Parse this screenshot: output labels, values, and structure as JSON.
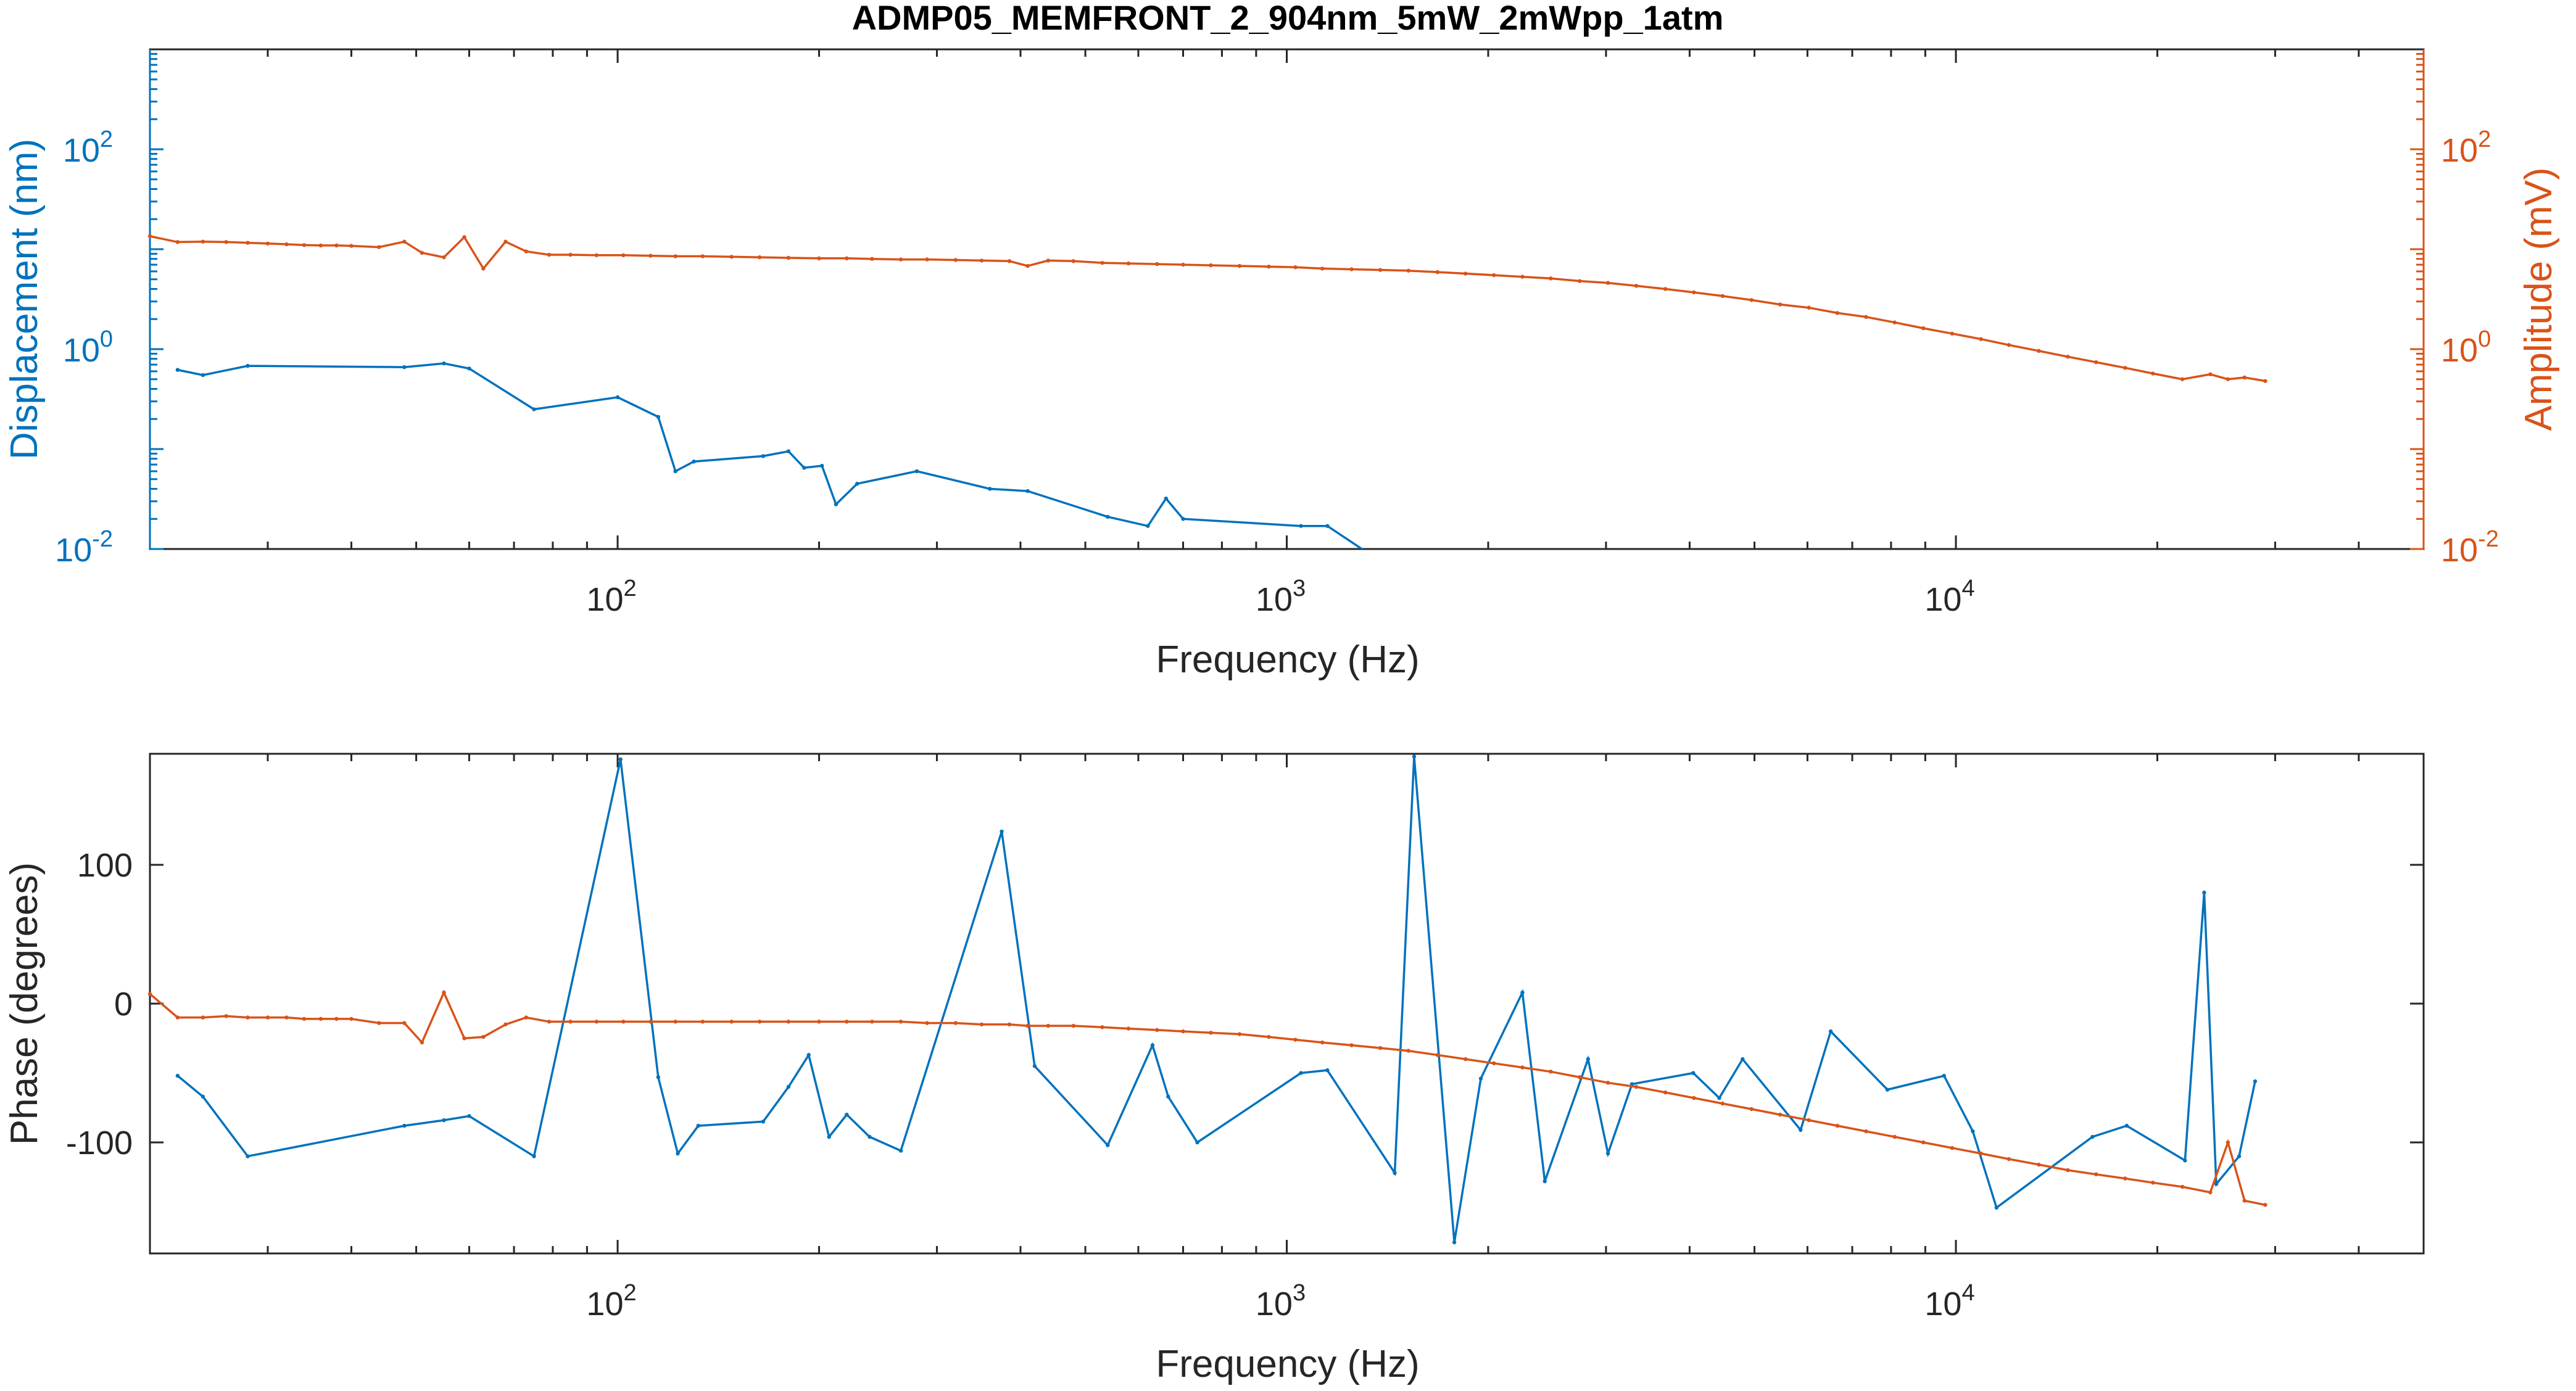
{
  "title": "ADMP05_MEMFRONT_2_904nm_5mW_2mWpp_1atm",
  "colors": {
    "blue": "#0072BD",
    "orange": "#D95319",
    "axis": "#262626"
  },
  "chart_data": [
    {
      "type": "line",
      "xlabel": "Frequency (Hz)",
      "ylabel_left": "Displacement (nm)",
      "ylabel_right": "Amplitude (mV)",
      "xscale": "log",
      "yscale": "log",
      "xlim": [
        20,
        50000
      ],
      "ylim_left": [
        0.01,
        1000
      ],
      "ylim_right": [
        0.01,
        1000
      ],
      "x_ticks": [
        {
          "value": 100,
          "base": "10",
          "exp": "2"
        },
        {
          "value": 1000,
          "base": "10",
          "exp": "3"
        },
        {
          "value": 10000,
          "base": "10",
          "exp": "4"
        }
      ],
      "y_ticks_left": [
        {
          "value": 0.01,
          "base": "10",
          "exp": "-2"
        },
        {
          "value": 1,
          "base": "10",
          "exp": "0"
        },
        {
          "value": 100,
          "base": "10",
          "exp": "2"
        }
      ],
      "y_ticks_right": [
        {
          "value": 0.01,
          "base": "10",
          "exp": "-2"
        },
        {
          "value": 1,
          "base": "10",
          "exp": "0"
        },
        {
          "value": 100,
          "base": "10",
          "exp": "2"
        }
      ],
      "series": [
        {
          "axis": "left",
          "color": "#0072BD",
          "x": [
            22,
            24,
            28,
            48,
            55,
            60,
            75,
            100,
            115,
            122,
            130,
            165,
            180,
            190,
            202,
            212,
            228,
            280,
            360,
            410,
            540,
            620,
            660,
            700,
            1050,
            1150,
            1310
          ],
          "y": [
            0.62,
            0.55,
            0.68,
            0.66,
            0.72,
            0.64,
            0.25,
            0.33,
            0.21,
            0.06,
            0.075,
            0.085,
            0.095,
            0.065,
            0.068,
            0.028,
            0.045,
            0.06,
            0.04,
            0.038,
            0.021,
            0.017,
            0.032,
            0.02,
            0.017,
            0.017,
            0.0095
          ]
        },
        {
          "axis": "right",
          "color": "#D95319",
          "x": [
            20,
            22,
            24,
            26,
            28,
            30,
            32,
            34,
            36,
            38,
            40,
            44,
            48,
            51,
            55,
            59,
            63,
            68,
            73,
            79,
            85,
            93,
            102,
            112,
            122,
            134,
            148,
            163,
            180,
            200,
            220,
            240,
            265,
            290,
            320,
            350,
            385,
            410,
            440,
            480,
            530,
            580,
            640,
            700,
            770,
            850,
            940,
            1030,
            1130,
            1250,
            1380,
            1520,
            1680,
            1850,
            2040,
            2250,
            2480,
            2740,
            3020,
            3330,
            3680,
            4060,
            4480,
            4950,
            5460,
            6030,
            6650,
            7340,
            8100,
            8940,
            9870,
            10900,
            12000,
            13300,
            14700,
            16200,
            17900,
            19700,
            21800,
            24000,
            25500,
            27000,
            29000
          ],
          "y": [
            13.5,
            11.8,
            11.9,
            11.8,
            11.6,
            11.4,
            11.2,
            11.0,
            10.9,
            10.9,
            10.8,
            10.5,
            11.9,
            9.2,
            8.3,
            13.2,
            6.4,
            11.9,
            9.5,
            8.8,
            8.8,
            8.7,
            8.7,
            8.6,
            8.5,
            8.5,
            8.4,
            8.3,
            8.2,
            8.1,
            8.1,
            8.0,
            7.9,
            7.9,
            7.8,
            7.7,
            7.6,
            6.8,
            7.7,
            7.6,
            7.3,
            7.2,
            7.1,
            7.0,
            6.9,
            6.8,
            6.7,
            6.6,
            6.4,
            6.3,
            6.2,
            6.1,
            5.9,
            5.7,
            5.5,
            5.3,
            5.1,
            4.8,
            4.6,
            4.3,
            4.0,
            3.7,
            3.4,
            3.1,
            2.8,
            2.6,
            2.3,
            2.1,
            1.85,
            1.62,
            1.43,
            1.26,
            1.1,
            0.96,
            0.84,
            0.74,
            0.65,
            0.57,
            0.5,
            0.56,
            0.5,
            0.52,
            0.48
          ]
        }
      ]
    },
    {
      "type": "line",
      "xlabel": "Frequency (Hz)",
      "ylabel": "Phase (degrees)",
      "xscale": "log",
      "xlim": [
        20,
        50000
      ],
      "ylim": [
        -180,
        180
      ],
      "x_ticks": [
        {
          "value": 100,
          "base": "10",
          "exp": "2"
        },
        {
          "value": 1000,
          "base": "10",
          "exp": "3"
        },
        {
          "value": 10000,
          "base": "10",
          "exp": "4"
        }
      ],
      "y_ticks": [
        {
          "value": -100,
          "label": "-100"
        },
        {
          "value": 0,
          "label": "0"
        },
        {
          "value": 100,
          "label": "100"
        }
      ],
      "series": [
        {
          "color": "#0072BD",
          "x": [
            22,
            24,
            28,
            48,
            55,
            60,
            75,
            101,
            115,
            123,
            132,
            165,
            180,
            193,
            207,
            220,
            238,
            265,
            375,
            420,
            540,
            630,
            665,
            735,
            1050,
            1150,
            1450,
            1550,
            1780,
            1950,
            2250,
            2430,
            2820,
            3020,
            3280,
            4050,
            4430,
            4800,
            5860,
            6500,
            7900,
            9600,
            10600,
            11500,
            16000,
            18000,
            22000,
            23500,
            24500,
            26500,
            28000
          ],
          "y": [
            -52,
            -67,
            -110,
            -88,
            -84,
            -81,
            -110,
            176,
            -53,
            -108,
            -88,
            -85,
            -60,
            -37,
            -96,
            -80,
            -96,
            -106,
            124,
            -45,
            -102,
            -30,
            -67,
            -100,
            -50,
            -48,
            -122,
            178,
            -172,
            -54,
            8,
            -128,
            -40,
            -108,
            -58,
            -50,
            -68,
            -40,
            -91,
            -20,
            -62,
            -52,
            -92,
            -147,
            -96,
            -88,
            -113,
            80,
            -130,
            -110,
            -56
          ]
        },
        {
          "color": "#D95319",
          "x": [
            20,
            22,
            24,
            26,
            28,
            30,
            32,
            34,
            36,
            38,
            40,
            44,
            48,
            51,
            55,
            59,
            63,
            68,
            73,
            79,
            85,
            93,
            102,
            112,
            122,
            134,
            148,
            163,
            180,
            200,
            220,
            240,
            265,
            290,
            320,
            350,
            385,
            410,
            440,
            480,
            530,
            580,
            640,
            700,
            770,
            850,
            940,
            1030,
            1130,
            1250,
            1380,
            1520,
            1680,
            1850,
            2040,
            2250,
            2480,
            2740,
            3020,
            3330,
            3680,
            4060,
            4480,
            4950,
            5460,
            6030,
            6650,
            7340,
            8100,
            8940,
            9870,
            10900,
            12000,
            13300,
            14700,
            16200,
            17900,
            19700,
            21800,
            24000,
            25500,
            27000,
            29000
          ],
          "y": [
            7,
            -10,
            -10,
            -9,
            -10,
            -10,
            -10,
            -11,
            -11,
            -11,
            -11,
            -14,
            -14,
            -28,
            8,
            -25,
            -24,
            -15,
            -10,
            -13,
            -13,
            -13,
            -13,
            -13,
            -13,
            -13,
            -13,
            -13,
            -13,
            -13,
            -13,
            -13,
            -13,
            -14,
            -14,
            -15,
            -15,
            -16,
            -16,
            -16,
            -17,
            -18,
            -19,
            -20,
            -21,
            -22,
            -24,
            -26,
            -28,
            -30,
            -32,
            -34,
            -37,
            -40,
            -43,
            -46,
            -49,
            -53,
            -57,
            -60,
            -64,
            -68,
            -72,
            -76,
            -80,
            -84,
            -88,
            -92,
            -96,
            -100,
            -104,
            -108,
            -112,
            -116,
            -120,
            -123,
            -126,
            -129,
            -132,
            -136,
            -100,
            -142,
            -145
          ]
        }
      ]
    }
  ]
}
